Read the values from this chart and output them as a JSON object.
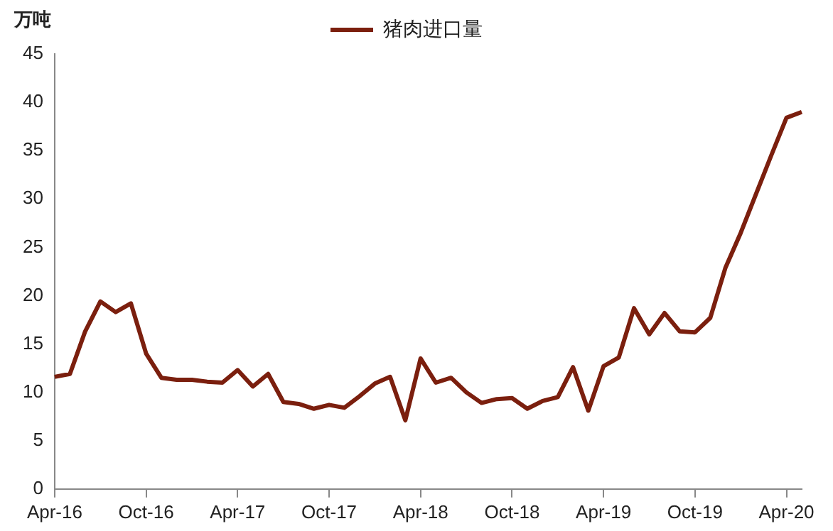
{
  "chart_data": {
    "type": "line",
    "ylabel": "万吨",
    "legend": "top",
    "categories": [
      "Apr-16",
      null,
      null,
      null,
      null,
      null,
      "Oct-16",
      null,
      null,
      null,
      null,
      null,
      "Apr-17",
      null,
      null,
      null,
      null,
      null,
      "Oct-17",
      null,
      null,
      null,
      null,
      null,
      "Apr-18",
      null,
      null,
      null,
      null,
      null,
      "Oct-18",
      null,
      null,
      null,
      null,
      null,
      "Apr-19",
      null,
      null,
      null,
      null,
      null,
      "Oct-19",
      null,
      null,
      null,
      null,
      null,
      "Apr-20",
      null
    ],
    "series": [
      {
        "name": "猪肉进口量",
        "color": "#7b1f0e",
        "values": [
          11.6,
          11.9,
          16.3,
          19.4,
          18.3,
          19.2,
          14.0,
          11.5,
          11.3,
          11.3,
          11.1,
          11.0,
          12.3,
          10.6,
          11.9,
          9.0,
          8.8,
          8.3,
          8.7,
          8.4,
          9.6,
          10.9,
          11.6,
          7.1,
          13.5,
          11.0,
          11.5,
          10.0,
          8.9,
          9.3,
          9.4,
          8.3,
          9.1,
          9.5,
          12.6,
          8.1,
          12.7,
          13.6,
          18.7,
          16.0,
          18.2,
          16.3,
          16.2,
          17.7,
          22.9,
          26.5,
          30.5,
          34.5,
          38.4,
          39.0
        ]
      }
    ],
    "ylim": [
      0,
      45
    ],
    "yticks": [
      0,
      5,
      10,
      15,
      20,
      25,
      30,
      35,
      40,
      45
    ],
    "grid": false,
    "marker": "none",
    "line_style": "solid"
  }
}
